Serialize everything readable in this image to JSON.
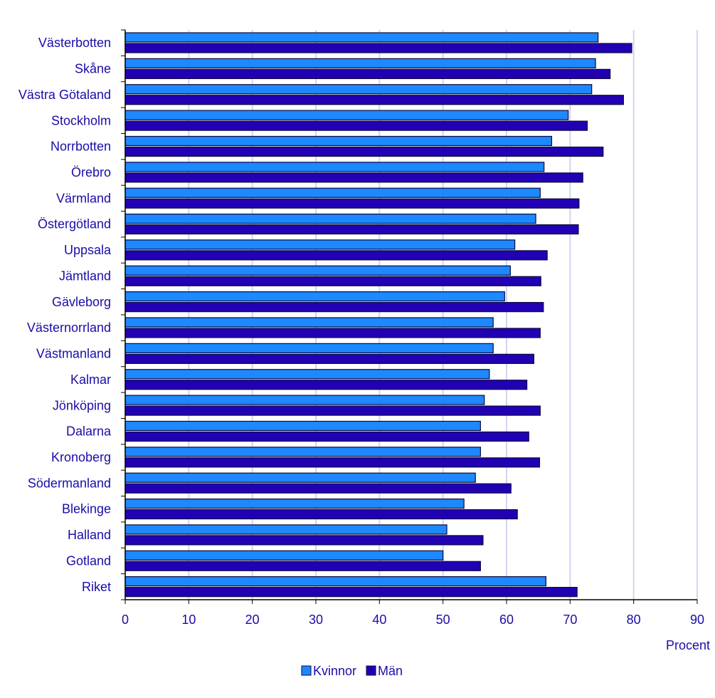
{
  "chart_data": {
    "type": "bar",
    "orientation": "horizontal",
    "categories": [
      "Västerbotten",
      "Skåne",
      "Västra Götaland",
      "Stockholm",
      "Norrbotten",
      "Örebro",
      "Värmland",
      "Östergötland",
      "Uppsala",
      "Jämtland",
      "Gävleborg",
      "Västernorrland",
      "Västmanland",
      "Kalmar",
      "Jönköping",
      "Dalarna",
      "Kronoberg",
      "Södermanland",
      "Blekinge",
      "Halland",
      "Gotland",
      "Riket"
    ],
    "series": [
      {
        "name": "Kvinnor",
        "color": "#1e88ff",
        "values": [
          74.4,
          74.0,
          73.4,
          69.7,
          67.1,
          65.9,
          65.3,
          64.6,
          61.3,
          60.6,
          59.7,
          57.9,
          57.9,
          57.3,
          56.5,
          55.9,
          55.9,
          55.1,
          53.3,
          50.6,
          50.0,
          66.2
        ]
      },
      {
        "name": "Män",
        "color": "#2200b4",
        "values": [
          79.7,
          76.3,
          78.4,
          72.7,
          75.2,
          72.0,
          71.4,
          71.3,
          66.4,
          65.4,
          65.8,
          65.3,
          64.3,
          63.2,
          65.3,
          63.5,
          65.2,
          60.7,
          61.7,
          56.3,
          55.9,
          71.1
        ]
      }
    ],
    "xlabel": "Procent",
    "xlim": [
      0,
      90
    ],
    "xticks": [
      "0",
      "10",
      "20",
      "30",
      "40",
      "50",
      "60",
      "70",
      "80",
      "90"
    ],
    "grid": true,
    "legend_placement": "bottom"
  }
}
